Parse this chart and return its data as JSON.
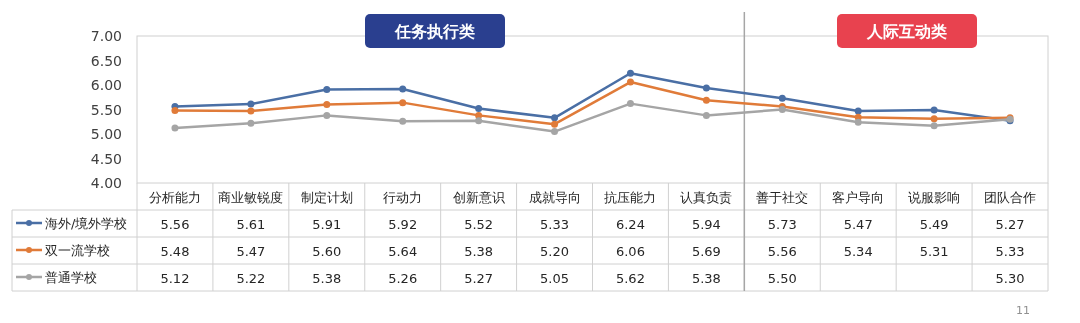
{
  "chart_data": {
    "type": "line",
    "categories": [
      "分析能力",
      "商业敏锐度",
      "制定计划",
      "行动力",
      "创新意识",
      "成就导向",
      "抗压能力",
      "认真负责",
      "善于社交",
      "客户导向",
      "说服影响",
      "团队合作"
    ],
    "series": [
      {
        "name": "海外/境外学校",
        "color": "#4a6fa5",
        "values": [
          5.56,
          5.61,
          5.91,
          5.92,
          5.52,
          5.33,
          6.24,
          5.94,
          5.73,
          5.47,
          5.49,
          5.27
        ],
        "value_labels": [
          "5.56",
          "5.61",
          "5.91",
          "5.92",
          "5.52",
          "5.33",
          "6.24",
          "5.94",
          "5.73",
          "5.47",
          "5.49",
          "5.27"
        ]
      },
      {
        "name": "双一流学校",
        "color": "#e07b39",
        "values": [
          5.48,
          5.47,
          5.6,
          5.64,
          5.38,
          5.2,
          6.06,
          5.69,
          5.56,
          5.34,
          5.31,
          5.33
        ],
        "value_labels": [
          "5.48",
          "5.47",
          "5.60",
          "5.64",
          "5.38",
          "5.20",
          "6.06",
          "5.69",
          "5.56",
          "5.34",
          "5.31",
          "5.33"
        ]
      },
      {
        "name": "普通学校",
        "color": "#a5a5a5",
        "values": [
          5.12,
          5.22,
          5.38,
          5.26,
          5.27,
          5.05,
          5.62,
          5.38,
          5.5,
          5.24,
          5.17,
          5.3
        ],
        "value_labels": [
          "5.12",
          "5.22",
          "5.38",
          "5.26",
          "5.27",
          "5.05",
          "5.62",
          "5.38",
          "5.50",
          null,
          null,
          "5.30"
        ]
      }
    ],
    "ylim": [
      4,
      7
    ],
    "yticks": [
      {
        "value": 4,
        "label": "4.00"
      },
      {
        "value": 4.5,
        "label": "4.50"
      },
      {
        "value": 5,
        "label": "5.00"
      },
      {
        "value": 5.5,
        "label": "5.50"
      },
      {
        "value": 6,
        "label": "6.00"
      },
      {
        "value": 6.5,
        "label": "6.50"
      },
      {
        "value": 7,
        "label": "7.00"
      }
    ],
    "annotations": [
      "任务执行类",
      "人际互动类",
      "11"
    ],
    "marker": "circle",
    "line_style": "solid",
    "legend": "bottom",
    "data_labels": true,
    "grid": false
  }
}
